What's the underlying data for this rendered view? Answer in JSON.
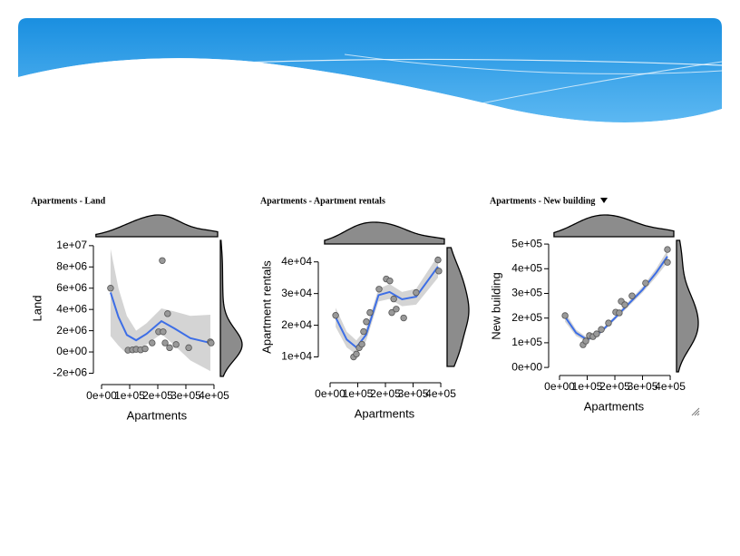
{
  "chart_data": [
    {
      "type": "scatter",
      "title": "Apartments - Land",
      "xlabel": "Apartments",
      "ylabel": "Land",
      "x": [
        32000,
        94000,
        110000,
        123000,
        139000,
        155000,
        180000,
        203000,
        216000,
        219000,
        226000,
        235000,
        242000,
        265000,
        310000,
        387000,
        390000
      ],
      "values": [
        6000000,
        170000,
        200000,
        250000,
        200000,
        300000,
        850000,
        1900000,
        8600000,
        1900000,
        850000,
        3600000,
        400000,
        700000,
        400000,
        950000,
        850000
      ],
      "fit": {
        "x": [
          32000,
          60000,
          90000,
          123000,
          160000,
          213000,
          260000,
          316000,
          387000
        ],
        "values": [
          5600000,
          3300000,
          1600000,
          1100000,
          1700000,
          2900000,
          2200000,
          1300000,
          850000
        ],
        "lower": [
          1500000,
          600000,
          -200000,
          200000,
          700000,
          1700000,
          600000,
          -800000,
          -1800000
        ],
        "upper": [
          9700000,
          6000000,
          3400000,
          2000000,
          2700000,
          4100000,
          3800000,
          3400000,
          3500000
        ]
      },
      "xlim": [
        -20000,
        413000
      ],
      "xticks": [
        {
          "value": 0,
          "label": "0e+00"
        },
        {
          "value": 100000,
          "label": "1e+05"
        },
        {
          "value": 200000,
          "label": "2e+05"
        },
        {
          "value": 300000,
          "label": "3e+05"
        },
        {
          "value": 400000,
          "label": "4e+05"
        }
      ],
      "ylim": [
        -2300000,
        10500000
      ],
      "yticks": [
        {
          "value": -2000000,
          "label": "-2e+06"
        },
        {
          "value": 0,
          "label": "0e+00"
        },
        {
          "value": 2000000,
          "label": "2e+06"
        },
        {
          "value": 4000000,
          "label": "4e+06"
        },
        {
          "value": 6000000,
          "label": "6e+06"
        },
        {
          "value": 8000000,
          "label": "8e+06"
        },
        {
          "value": 10000000,
          "label": "1e+07"
        }
      ],
      "color": "#999999",
      "fit_color": "#3d6ee6"
    },
    {
      "type": "scatter",
      "title": "Apartments - Apartment rentals",
      "xlabel": "Apartments",
      "ylabel": "Apartment rentals",
      "x": [
        20000,
        85000,
        95000,
        105000,
        115000,
        121000,
        131000,
        144000,
        177000,
        203000,
        216000,
        223000,
        230000,
        239000,
        266000,
        311000,
        390000,
        393000
      ],
      "values": [
        23100,
        10000,
        10900,
        12900,
        14000,
        18000,
        21100,
        24000,
        31400,
        34600,
        34000,
        24000,
        28300,
        25100,
        22300,
        30300,
        40600,
        37100
      ],
      "fit": {
        "x": [
          20000,
          60000,
          95000,
          130000,
          175000,
          215000,
          260000,
          311000,
          390000
        ],
        "values": [
          22500,
          15500,
          13000,
          17000,
          29500,
          30500,
          28200,
          29000,
          38500
        ],
        "lower": [
          19500,
          13000,
          10800,
          15000,
          27500,
          28300,
          26000,
          26500,
          35000
        ],
        "upper": [
          25500,
          18000,
          15200,
          19000,
          31500,
          33000,
          30500,
          31500,
          42000
        ]
      },
      "xlim": [
        -20000,
        413000
      ],
      "xticks": [
        {
          "value": 0,
          "label": "0e+00"
        },
        {
          "value": 100000,
          "label": "1e+05"
        },
        {
          "value": 200000,
          "label": "2e+05"
        },
        {
          "value": 300000,
          "label": "3e+05"
        },
        {
          "value": 400000,
          "label": "4e+05"
        }
      ],
      "ylim": [
        7000,
        44500
      ],
      "yticks": [
        {
          "value": 10000,
          "label": "1e+04"
        },
        {
          "value": 20000,
          "label": "2e+04"
        },
        {
          "value": 30000,
          "label": "3e+04"
        },
        {
          "value": 40000,
          "label": "4e+04"
        }
      ],
      "color": "#999999",
      "fit_color": "#3d6ee6"
    },
    {
      "type": "scatter",
      "title": "Apartments - New building",
      "xlabel": "Apartments",
      "ylabel": "New building",
      "x": [
        20000,
        85000,
        95000,
        108000,
        121000,
        134000,
        151000,
        177000,
        203000,
        216000,
        223000,
        236000,
        262000,
        311000,
        390000,
        390000
      ],
      "values": [
        210000,
        92000,
        107000,
        129000,
        125000,
        136000,
        154000,
        180000,
        224000,
        221000,
        268000,
        254000,
        290000,
        342000,
        478000,
        426000
      ],
      "fit": {
        "x": [
          20000,
          60000,
          100000,
          150000,
          200000,
          250000,
          300000,
          350000,
          390000
        ],
        "values": [
          205000,
          140000,
          112000,
          145000,
          200000,
          258000,
          315000,
          385000,
          450000
        ],
        "lower": [
          185000,
          127000,
          103000,
          137000,
          192000,
          248000,
          303000,
          368000,
          425000
        ],
        "upper": [
          225000,
          153000,
          121000,
          153000,
          208000,
          268000,
          327000,
          402000,
          475000
        ]
      },
      "xlim": [
        -20000,
        413000
      ],
      "xticks": [
        {
          "value": 0,
          "label": "0e+00"
        },
        {
          "value": 100000,
          "label": "1e+05"
        },
        {
          "value": 200000,
          "label": "2e+05"
        },
        {
          "value": 300000,
          "label": "3e+05"
        },
        {
          "value": 400000,
          "label": "4e+05"
        }
      ],
      "ylim": [
        -18000,
        515000
      ],
      "yticks": [
        {
          "value": 0,
          "label": "0e+00"
        },
        {
          "value": 100000,
          "label": "1e+05"
        },
        {
          "value": 200000,
          "label": "2e+05"
        },
        {
          "value": 300000,
          "label": "3e+05"
        },
        {
          "value": 400000,
          "label": "4e+05"
        },
        {
          "value": 500000,
          "label": "5e+05"
        }
      ],
      "color": "#999999",
      "fit_color": "#3d6ee6"
    }
  ]
}
